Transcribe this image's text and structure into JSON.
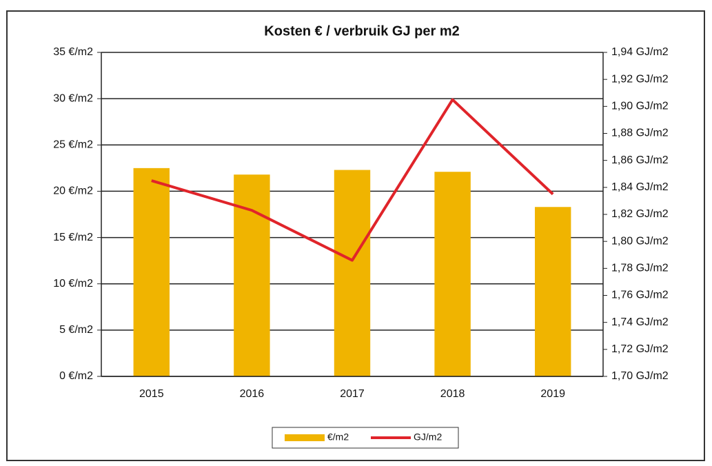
{
  "chart_data": {
    "type": "bar_line",
    "title": "Kosten € / verbruik GJ per m2",
    "categories": [
      "2015",
      "2016",
      "2017",
      "2018",
      "2019"
    ],
    "series": [
      {
        "name": "€/m2",
        "type": "bar",
        "color": "#f0b400",
        "values": [
          22.5,
          21.8,
          22.3,
          22.1,
          18.3
        ]
      },
      {
        "name": "GJ/m2",
        "type": "line",
        "axis": "y2",
        "color": "#e0242a",
        "values": [
          1.845,
          1.823,
          1.786,
          1.905,
          1.835
        ]
      }
    ],
    "ylim": [
      0,
      35
    ],
    "yticks": [
      {
        "value": 0,
        "label": "0 €/m2"
      },
      {
        "value": 5,
        "label": "5 €/m2"
      },
      {
        "value": 10,
        "label": "10 €/m2"
      },
      {
        "value": 15,
        "label": "15 €/m2"
      },
      {
        "value": 20,
        "label": "20 €/m2"
      },
      {
        "value": 25,
        "label": "25 €/m2"
      },
      {
        "value": 30,
        "label": "30 €/m2"
      },
      {
        "value": 35,
        "label": "35 €/m2"
      }
    ],
    "y2lim": [
      1.7,
      1.94
    ],
    "y2ticks": [
      {
        "value": 1.7,
        "label": "1,70 GJ/m2"
      },
      {
        "value": 1.72,
        "label": "1,72 GJ/m2"
      },
      {
        "value": 1.74,
        "label": "1,74 GJ/m2"
      },
      {
        "value": 1.76,
        "label": "1,76 GJ/m2"
      },
      {
        "value": 1.78,
        "label": "1,78 GJ/m2"
      },
      {
        "value": 1.8,
        "label": "1,80 GJ/m2"
      },
      {
        "value": 1.82,
        "label": "1,82 GJ/m2"
      },
      {
        "value": 1.84,
        "label": "1,84 GJ/m2"
      },
      {
        "value": 1.86,
        "label": "1,86 GJ/m2"
      },
      {
        "value": 1.88,
        "label": "1,88 GJ/m2"
      },
      {
        "value": 1.9,
        "label": "1,90 GJ/m2"
      },
      {
        "value": 1.92,
        "label": "1,92 GJ/m2"
      },
      {
        "value": 1.94,
        "label": "1,94 GJ/m2"
      }
    ],
    "grid": true,
    "legend": "bottom"
  }
}
